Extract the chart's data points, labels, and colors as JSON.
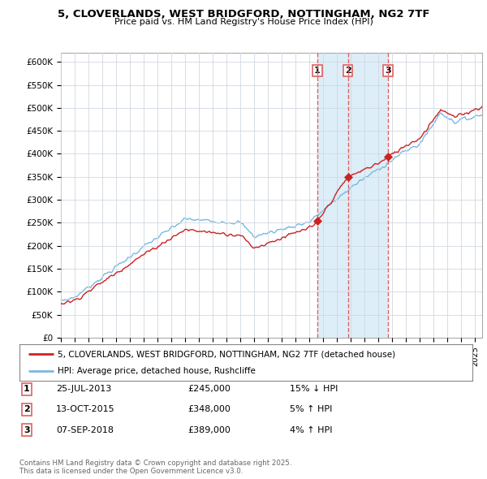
{
  "title": "5, CLOVERLANDS, WEST BRIDGFORD, NOTTINGHAM, NG2 7TF",
  "subtitle": "Price paid vs. HM Land Registry's House Price Index (HPI)",
  "ylim": [
    0,
    600000
  ],
  "legend_line1": "5, CLOVERLANDS, WEST BRIDGFORD, NOTTINGHAM, NG2 7TF (detached house)",
  "legend_line2": "HPI: Average price, detached house, Rushcliffe",
  "transactions": [
    {
      "num": 1,
      "date": "25-JUL-2013",
      "price": 245000,
      "pct": "15%",
      "dir": "↓",
      "year": 2013.56
    },
    {
      "num": 2,
      "date": "13-OCT-2015",
      "price": 348000,
      "pct": "5%",
      "dir": "↑",
      "year": 2015.78
    },
    {
      "num": 3,
      "date": "07-SEP-2018",
      "price": 389000,
      "pct": "4%",
      "dir": "↑",
      "year": 2018.69
    }
  ],
  "footer": "Contains HM Land Registry data © Crown copyright and database right 2025.\nThis data is licensed under the Open Government Licence v3.0.",
  "hpi_color": "#7ab8e0",
  "price_color": "#cc2222",
  "vline_color": "#e06060",
  "shade_color": "#ddeef8",
  "background_color": "#ffffff",
  "grid_color": "#d0d8e0",
  "xlim_start": 1995.0,
  "xlim_end": 2025.5
}
